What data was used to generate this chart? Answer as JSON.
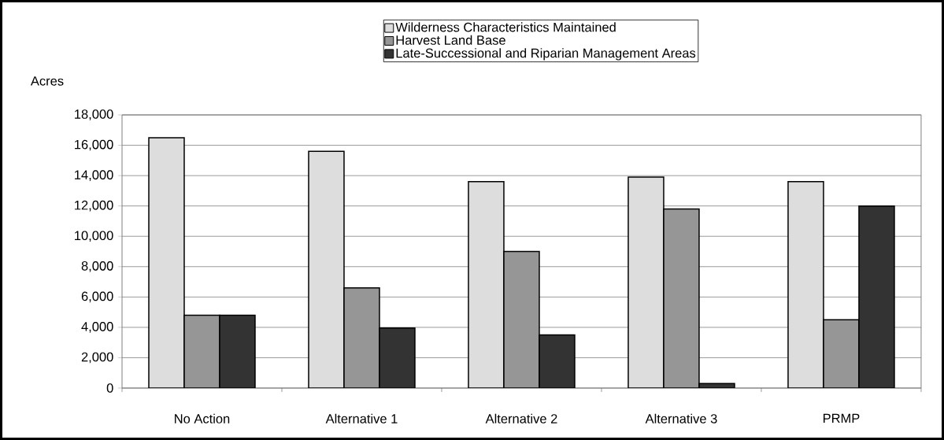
{
  "chart_data": {
    "type": "bar",
    "ylabel": "Acres",
    "categories": [
      "No Action",
      "Alternative 1",
      "Alternative 2",
      "Alternative 3",
      "PRMP"
    ],
    "series": [
      {
        "name": "Wilderness Characteristics Maintained",
        "color": "#dddddd",
        "values": [
          16500,
          15600,
          13600,
          13900,
          13600
        ]
      },
      {
        "name": "Harvest Land Base",
        "color": "#969696",
        "values": [
          4800,
          6600,
          9000,
          11800,
          4500
        ]
      },
      {
        "name": "Late-Successional and Riparian Management Areas",
        "color": "#333333",
        "values": [
          4800,
          3950,
          3500,
          300,
          12000
        ]
      }
    ],
    "ylim": [
      0,
      18000
    ],
    "yticks": [
      0,
      {
        "value": 2000,
        "label": "2,000"
      },
      {
        "value": 4000,
        "label": "4,000"
      },
      {
        "value": 6000,
        "label": "6,000"
      },
      {
        "value": 8000,
        "label": "8,000"
      },
      {
        "value": 10000,
        "label": "10,000"
      },
      {
        "value": 12000,
        "label": "12,000"
      },
      {
        "value": 14000,
        "label": "14,000"
      },
      {
        "value": 16000,
        "label": "16,000"
      },
      {
        "value": 18000,
        "label": "18,000"
      }
    ],
    "grid": "y",
    "legend": "top right"
  }
}
